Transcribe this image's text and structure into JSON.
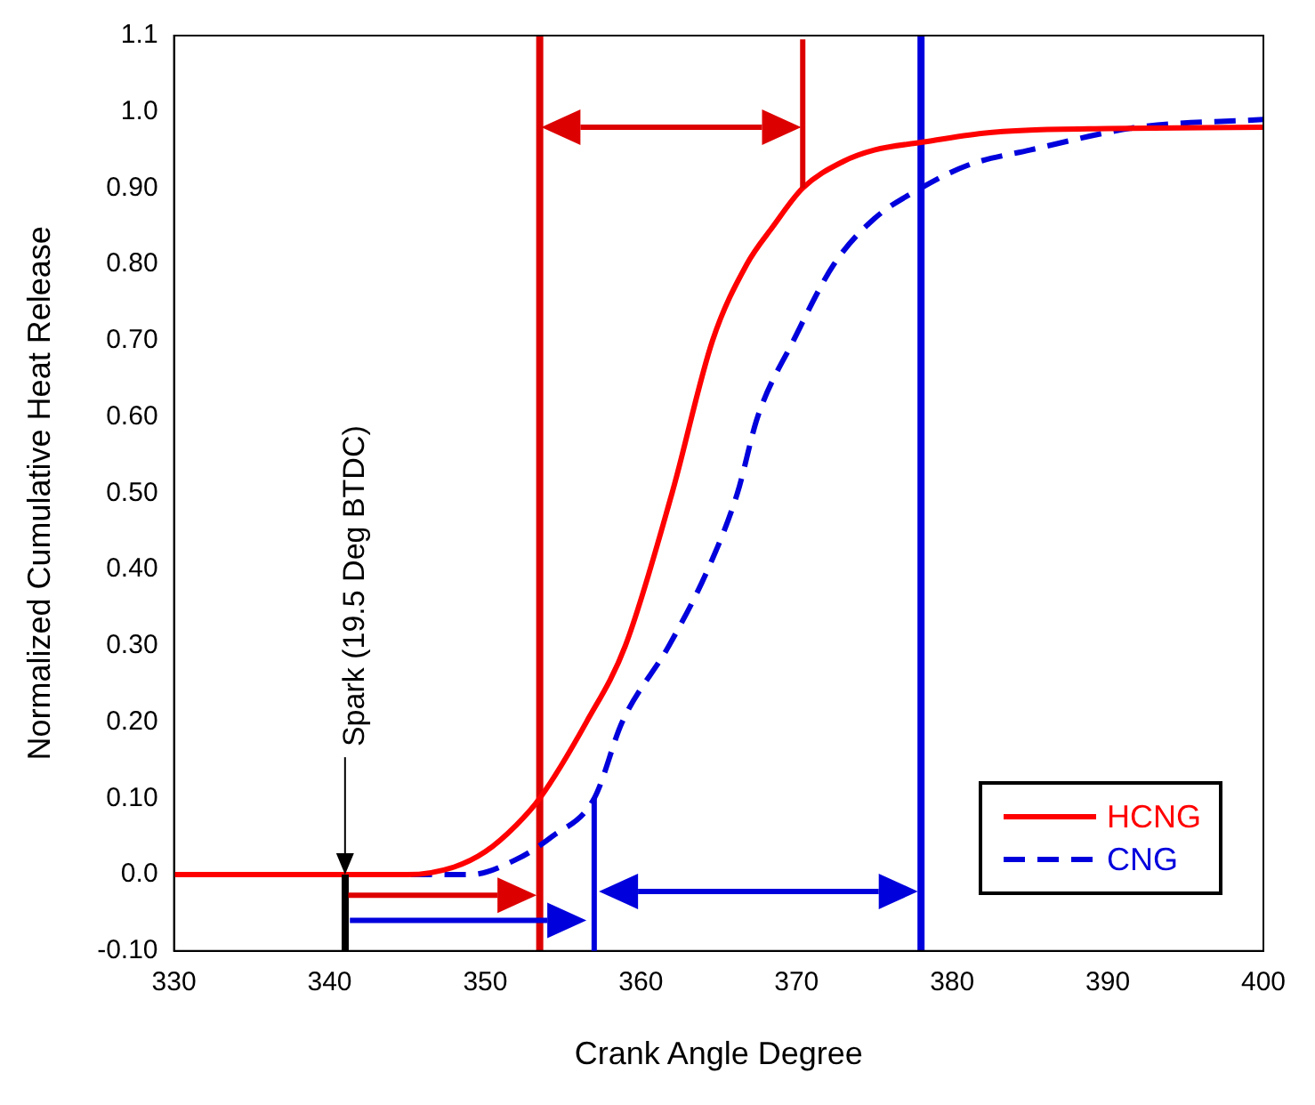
{
  "chart_data": {
    "type": "line",
    "xlabel": "Crank Angle Degree",
    "ylabel": "Normalized Cumulative Heat Release",
    "xlim": [
      330,
      400
    ],
    "xticks": [
      330,
      340,
      350,
      360,
      370,
      380,
      390,
      400
    ],
    "ylim": [
      -0.1,
      1.1
    ],
    "yticks": [
      {
        "value": -0.1,
        "label": "-0.10"
      },
      {
        "value": 0,
        "label": "0.0"
      },
      {
        "value": 0.1,
        "label": "0.10"
      },
      {
        "value": 0.2,
        "label": "0.20"
      },
      {
        "value": 0.3,
        "label": "0.30"
      },
      {
        "value": 0.4,
        "label": "0.40"
      },
      {
        "value": 0.5,
        "label": "0.50"
      },
      {
        "value": 0.6,
        "label": "0.60"
      },
      {
        "value": 0.7,
        "label": "0.70"
      },
      {
        "value": 0.8,
        "label": "0.80"
      },
      {
        "value": 0.9,
        "label": "0.90"
      },
      {
        "value": 1.0,
        "label": "1.0"
      },
      {
        "value": 1.1,
        "label": "1.1"
      }
    ],
    "grid": false,
    "legend": "bottom right",
    "marker": "none",
    "series": [
      {
        "name": "HCNG",
        "color": "#ff0000",
        "line_style": "solid",
        "x": [
          330,
          345,
          348,
          350,
          352,
          353.5,
          356.5,
          359,
          362,
          364.6,
          366.8,
          368.5,
          370.4,
          373,
          375,
          378,
          382,
          385,
          390,
          400
        ],
        "values": [
          0,
          0,
          0.01,
          0.03,
          0.065,
          0.1,
          0.2,
          0.3,
          0.5,
          0.7,
          0.8,
          0.85,
          0.9,
          0.935,
          0.95,
          0.96,
          0.972,
          0.976,
          0.978,
          0.98
        ]
      },
      {
        "name": "CNG",
        "color": "#0000dd",
        "line_style": "dashed",
        "x": [
          330,
          349,
          352,
          354.3,
          357,
          358.8,
          361.8,
          364.3,
          366.2,
          367.5,
          369.8,
          372.4,
          375,
          378,
          381,
          385,
          392,
          400
        ],
        "values": [
          0,
          0,
          0.02,
          0.05,
          0.1,
          0.2,
          0.3,
          0.4,
          0.5,
          0.6,
          0.7,
          0.8,
          0.86,
          0.9,
          0.93,
          0.95,
          0.98,
          0.99
        ]
      }
    ],
    "ref_lines": [
      {
        "axis": "x",
        "value": 353.5,
        "color": "#dd0000"
      },
      {
        "axis": "x",
        "value": 378,
        "color": "#0000dd"
      }
    ],
    "annotations": [
      "Spark (19.5 Deg BTDC)"
    ]
  }
}
